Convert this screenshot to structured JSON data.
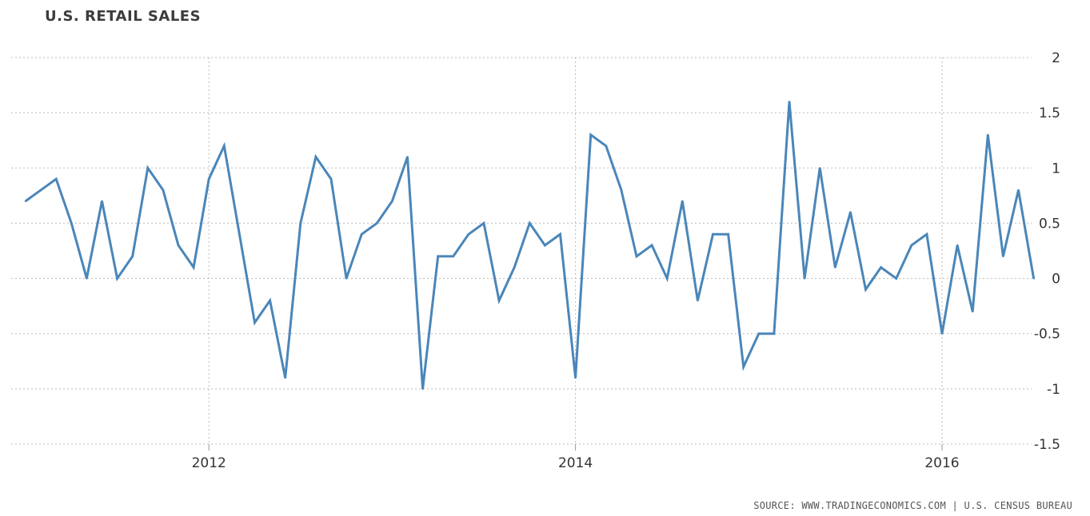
{
  "page": {
    "title": "U.S. RETAIL SALES",
    "source": "SOURCE: WWW.TRADINGECONOMICS.COM | U.S. CENSUS BUREAU"
  },
  "colors": {
    "line": "#4a86b9",
    "grid": "#bbbbbb",
    "text": "#333333"
  },
  "chart_data": {
    "type": "line",
    "title": "U.S. RETAIL SALES",
    "xlabel": "",
    "ylabel": "",
    "ylim": [
      -1.5,
      2
    ],
    "yticks": [
      "2",
      "1.5",
      "1",
      "0.5",
      "0",
      "-0.5",
      "-1",
      "-1.5"
    ],
    "xticks": [
      {
        "label": "2012",
        "value": "2012-01"
      },
      {
        "label": "2014",
        "value": "2014-01"
      },
      {
        "label": "2016",
        "value": "2016-01"
      }
    ],
    "grid": true,
    "x": [
      "2011-01",
      "2011-02",
      "2011-03",
      "2011-04",
      "2011-05",
      "2011-06",
      "2011-07",
      "2011-08",
      "2011-09",
      "2011-10",
      "2011-11",
      "2011-12",
      "2012-01",
      "2012-02",
      "2012-03",
      "2012-04",
      "2012-05",
      "2012-06",
      "2012-07",
      "2012-08",
      "2012-09",
      "2012-10",
      "2012-11",
      "2012-12",
      "2013-01",
      "2013-02",
      "2013-03",
      "2013-04",
      "2013-05",
      "2013-06",
      "2013-07",
      "2013-08",
      "2013-09",
      "2013-10",
      "2013-11",
      "2013-12",
      "2014-01",
      "2014-02",
      "2014-03",
      "2014-04",
      "2014-05",
      "2014-06",
      "2014-07",
      "2014-08",
      "2014-09",
      "2014-10",
      "2014-11",
      "2014-12",
      "2015-01",
      "2015-02",
      "2015-03",
      "2015-04",
      "2015-05",
      "2015-06",
      "2015-07",
      "2015-08",
      "2015-09",
      "2015-10",
      "2015-11",
      "2015-12",
      "2016-01",
      "2016-02",
      "2016-03",
      "2016-04",
      "2016-05",
      "2016-06",
      "2016-07"
    ],
    "series": [
      {
        "values": [
          0.7,
          0.8,
          0.9,
          0.5,
          0.0,
          0.7,
          0.0,
          0.2,
          1.0,
          0.8,
          0.3,
          0.1,
          0.9,
          1.2,
          0.4,
          -0.4,
          -0.2,
          -0.9,
          0.5,
          1.1,
          0.9,
          0.0,
          0.4,
          0.5,
          0.7,
          1.1,
          -1.0,
          0.2,
          0.2,
          0.4,
          0.5,
          -0.2,
          0.1,
          0.5,
          0.3,
          0.4,
          -0.9,
          1.3,
          1.2,
          0.8,
          0.2,
          0.3,
          0.0,
          0.7,
          -0.2,
          0.4,
          0.4,
          -0.8,
          -0.5,
          -0.5,
          1.6,
          0.0,
          1.0,
          0.1,
          0.6,
          -0.1,
          0.1,
          0.0,
          0.3,
          0.4,
          -0.5,
          0.3,
          -0.3,
          1.3,
          0.2,
          0.8,
          0.0
        ]
      }
    ]
  }
}
